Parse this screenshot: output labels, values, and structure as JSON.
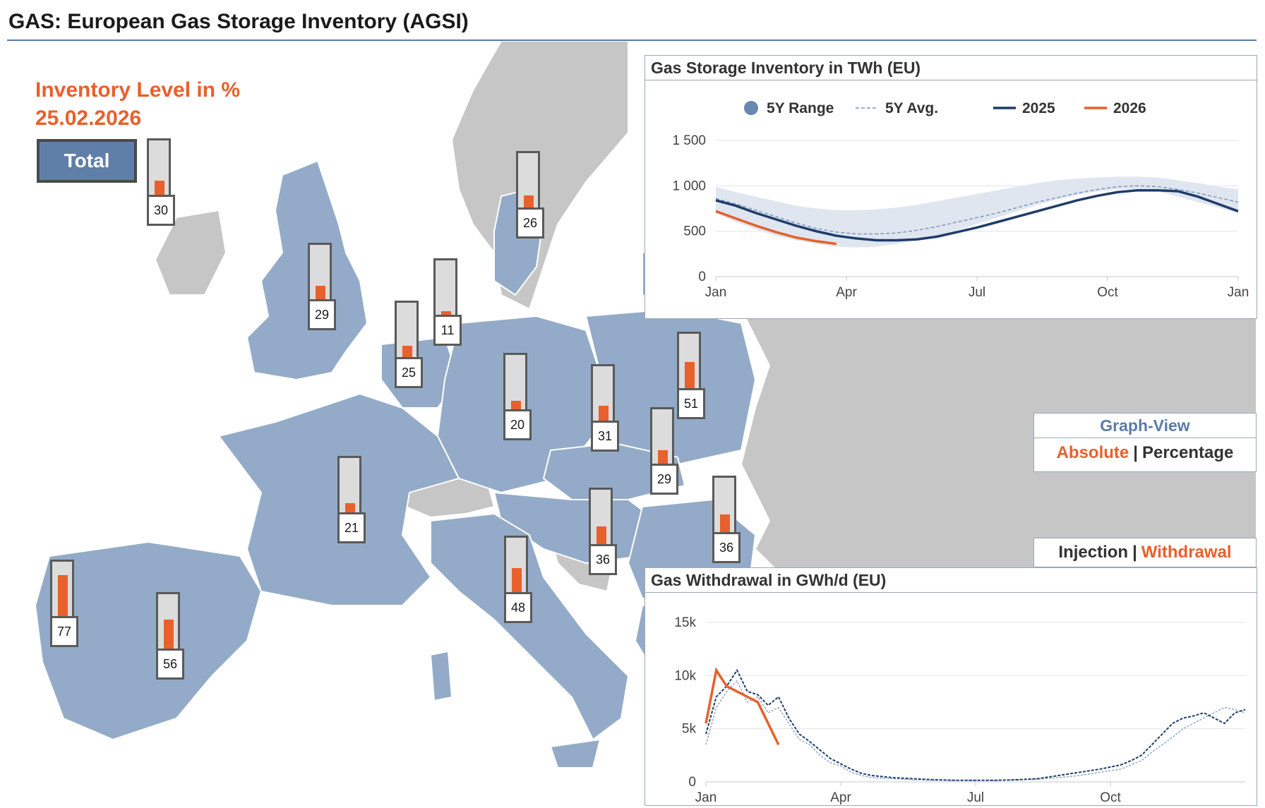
{
  "page": {
    "title": "GAS: European Gas Storage Inventory (AGSI)"
  },
  "inventory": {
    "heading": "Inventory Level in %",
    "date": "25.02.2026",
    "total_button": "Total"
  },
  "gauges": [
    {
      "country": "Ireland",
      "value": 30
    },
    {
      "country": "Denmark",
      "value": 26
    },
    {
      "country": "United Kingdom",
      "value": 29
    },
    {
      "country": "Netherlands",
      "value": 11
    },
    {
      "country": "Belgium",
      "value": 25
    },
    {
      "country": "Germany",
      "value": 20
    },
    {
      "country": "Czechia",
      "value": 31
    },
    {
      "country": "Poland",
      "value": 51
    },
    {
      "country": "Slovakia",
      "value": 29
    },
    {
      "country": "France",
      "value": 21
    },
    {
      "country": "Austria",
      "value": 36
    },
    {
      "country": "Romania",
      "value": 36
    },
    {
      "country": "Italy",
      "value": 48
    },
    {
      "country": "Portugal",
      "value": 77
    },
    {
      "country": "Spain",
      "value": 56
    }
  ],
  "graph_view": {
    "title": "Graph-View",
    "absolute": "Absolute",
    "separator": "|",
    "percentage": "Percentage"
  },
  "flow_toggle": {
    "injection": "Injection",
    "separator": "|",
    "withdrawal": "Withdrawal"
  },
  "colors": {
    "accent": "#e8602c",
    "eu_fill": "#93abc8",
    "non_eu_fill": "#c6c6c6",
    "series_2025": "#1f3d6b",
    "series_2026": "#e8602c",
    "range_fill": "#dfe6f0"
  },
  "chart_data": [
    {
      "type": "line",
      "title": "Gas Storage Inventory in TWh (EU)",
      "xlabel": "",
      "ylabel": "",
      "x_ticks": [
        "Jan",
        "Apr",
        "Jul",
        "Oct",
        "Jan"
      ],
      "y_ticks": [
        "0",
        "500",
        "1 000",
        "1 500"
      ],
      "ylim": [
        0,
        1600
      ],
      "legend": [
        "5Y Range",
        "5Y Avg.",
        "2025",
        "2026"
      ],
      "x_weeks": [
        0,
        2,
        4,
        6,
        8,
        10,
        12,
        14,
        16,
        18,
        20,
        22,
        24,
        26,
        28,
        30,
        32,
        34,
        36,
        38,
        40,
        42,
        44,
        46,
        48,
        50,
        52
      ],
      "range_low": [
        700,
        600,
        520,
        450,
        400,
        360,
        330,
        320,
        330,
        360,
        400,
        450,
        510,
        580,
        650,
        720,
        790,
        850,
        900,
        940,
        960,
        960,
        940,
        880,
        820,
        760,
        700
      ],
      "range_high": [
        990,
        930,
        880,
        830,
        780,
        750,
        730,
        730,
        740,
        760,
        790,
        830,
        870,
        910,
        950,
        990,
        1030,
        1060,
        1080,
        1090,
        1100,
        1100,
        1090,
        1060,
        1030,
        990,
        960
      ],
      "series": [
        {
          "name": "5Y Avg.",
          "values": [
            860,
            800,
            730,
            660,
            590,
            530,
            490,
            470,
            470,
            480,
            510,
            550,
            600,
            650,
            700,
            760,
            820,
            870,
            920,
            960,
            990,
            1000,
            990,
            960,
            920,
            870,
            820
          ]
        },
        {
          "name": "2025",
          "values": [
            840,
            780,
            700,
            630,
            560,
            500,
            450,
            420,
            400,
            400,
            410,
            440,
            490,
            540,
            600,
            660,
            720,
            780,
            840,
            890,
            930,
            950,
            950,
            940,
            880,
            800,
            720
          ]
        },
        {
          "name": "2026",
          "values": [
            720,
            640,
            560,
            490,
            430,
            390,
            360
          ]
        }
      ]
    },
    {
      "type": "line",
      "title": "Gas Withdrawal in GWh/d (EU)",
      "xlabel": "",
      "ylabel": "",
      "x_ticks": [
        "Jan",
        "Apr",
        "Jul",
        "Oct"
      ],
      "y_ticks": [
        "0",
        "5k",
        "10k",
        "15k"
      ],
      "ylim": [
        0,
        15000
      ],
      "x_weeks": [
        0,
        1,
        2,
        3,
        4,
        5,
        6,
        7,
        8,
        9,
        10,
        11,
        12,
        13,
        14,
        15,
        16,
        18,
        20,
        22,
        24,
        26,
        28,
        30,
        32,
        34,
        36,
        38,
        40,
        41,
        42,
        43,
        44,
        45,
        46,
        47,
        48,
        49,
        50,
        51,
        52
      ],
      "series": [
        {
          "name": "5Y Avg.",
          "values": [
            3500,
            7000,
            8500,
            9500,
            7500,
            8000,
            6500,
            7000,
            5500,
            4000,
            3500,
            2500,
            1800,
            1500,
            900,
            600,
            400,
            300,
            200,
            150,
            150,
            150,
            150,
            200,
            250,
            400,
            600,
            900,
            1200,
            1600,
            2000,
            2800,
            3500,
            4200,
            5000,
            5500,
            6000,
            6500,
            7000,
            6800,
            6500
          ]
        },
        {
          "name": "2025",
          "values": [
            4500,
            8000,
            9000,
            10500,
            8500,
            8200,
            7200,
            8000,
            6000,
            4500,
            3800,
            3000,
            2200,
            1700,
            1200,
            800,
            600,
            400,
            300,
            200,
            150,
            150,
            150,
            200,
            300,
            600,
            900,
            1200,
            1600,
            2000,
            2500,
            3500,
            4500,
            5500,
            6000,
            6200,
            6500,
            6000,
            5500,
            6500,
            6800
          ]
        },
        {
          "name": "2026",
          "values": [
            5500,
            10500,
            9000,
            8500,
            8000,
            7500,
            5500,
            3500
          ]
        }
      ]
    }
  ]
}
